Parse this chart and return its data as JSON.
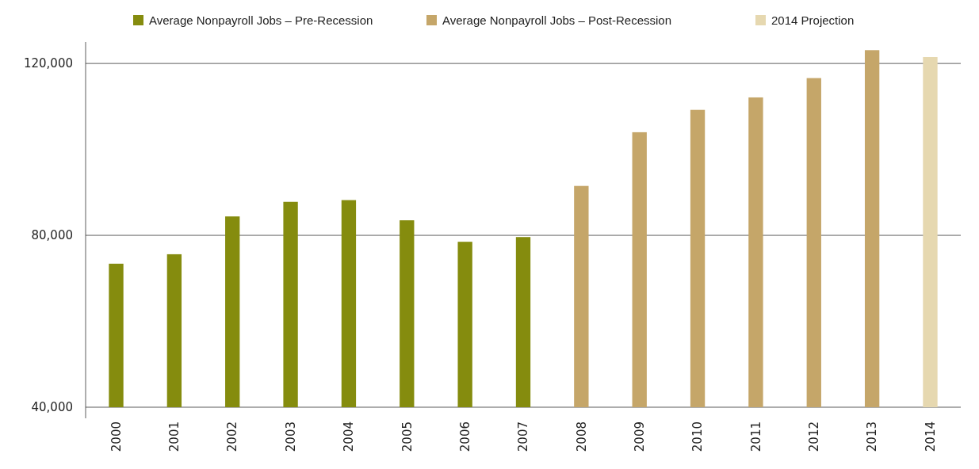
{
  "chart_data": {
    "type": "bar",
    "categories": [
      "2000",
      "2001",
      "2002",
      "2003",
      "2004",
      "2005",
      "2006",
      "2007",
      "2008",
      "2009",
      "2010",
      "2011",
      "2012",
      "2013",
      "2014"
    ],
    "series": [
      {
        "name": "Average Nonpayroll Jobs – Pre-Recession",
        "color": "#858c0e",
        "values": [
          73400,
          75600,
          84400,
          87800,
          88200,
          83500,
          78500,
          79600,
          null,
          null,
          null,
          null,
          null,
          null,
          null
        ]
      },
      {
        "name": "Average Nonpayroll Jobs – Post-Recession",
        "color": "#c5a669",
        "values": [
          null,
          null,
          null,
          null,
          null,
          null,
          null,
          null,
          91500,
          104000,
          109200,
          112100,
          116600,
          123100,
          null
        ]
      },
      {
        "name": "2014 Projection",
        "color": "#e6d8b0",
        "values": [
          null,
          null,
          null,
          null,
          null,
          null,
          null,
          null,
          null,
          null,
          null,
          null,
          null,
          null,
          121500
        ]
      }
    ],
    "ylim": [
      40000,
      125000
    ],
    "yticks": [
      {
        "value": 40000,
        "label": "40,000"
      },
      {
        "value": 80000,
        "label": "80,000"
      },
      {
        "value": 120000,
        "label": "120,000"
      }
    ],
    "grid": "y",
    "legend": "top"
  }
}
